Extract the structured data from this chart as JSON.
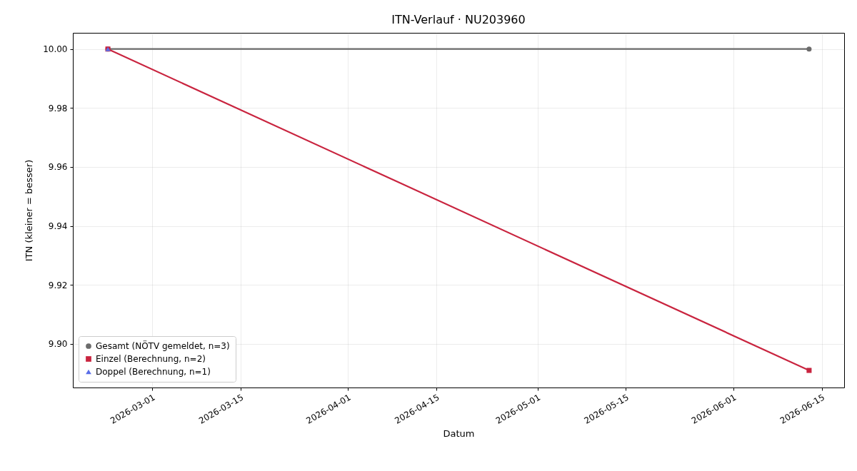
{
  "chart_data": {
    "type": "line",
    "title": "ITN-Verlauf · NU203960",
    "xlabel": "Datum",
    "ylabel": "ITN  (kleiner = besser)",
    "series": [
      {
        "name": "Gesamt (NÖTV gemeldet, n=3)",
        "color": "#6b6b6b",
        "marker": "circle",
        "x": [
          "2026-02-22",
          "2026-06-13"
        ],
        "values": [
          10,
          10
        ]
      },
      {
        "name": "Einzel (Berechnung, n=2)",
        "color": "#c9243f",
        "marker": "square",
        "x": [
          "2026-02-22",
          "2026-06-13"
        ],
        "values": [
          10,
          9.891
        ]
      },
      {
        "name": "Doppel (Berechnung, n=1)",
        "color": "#5a6ee8",
        "marker": "triangle",
        "x": [
          "2026-02-22"
        ],
        "values": [
          10
        ]
      }
    ],
    "xlim": [
      "2026-02-16T10:48",
      "2026-06-18T13:12"
    ],
    "xticks": [
      "2026-03-01",
      "2026-03-15",
      "2026-04-01",
      "2026-04-15",
      "2026-05-01",
      "2026-05-15",
      "2026-06-01",
      "2026-06-15"
    ],
    "ylim": [
      9.8852,
      10.0055
    ],
    "yticks": [
      {
        "value": 9.9,
        "label": "9.90"
      },
      9.92,
      9.94,
      9.96,
      9.98,
      {
        "value": 10,
        "label": "10.00"
      }
    ],
    "grid": true,
    "legend": "bottom left"
  }
}
